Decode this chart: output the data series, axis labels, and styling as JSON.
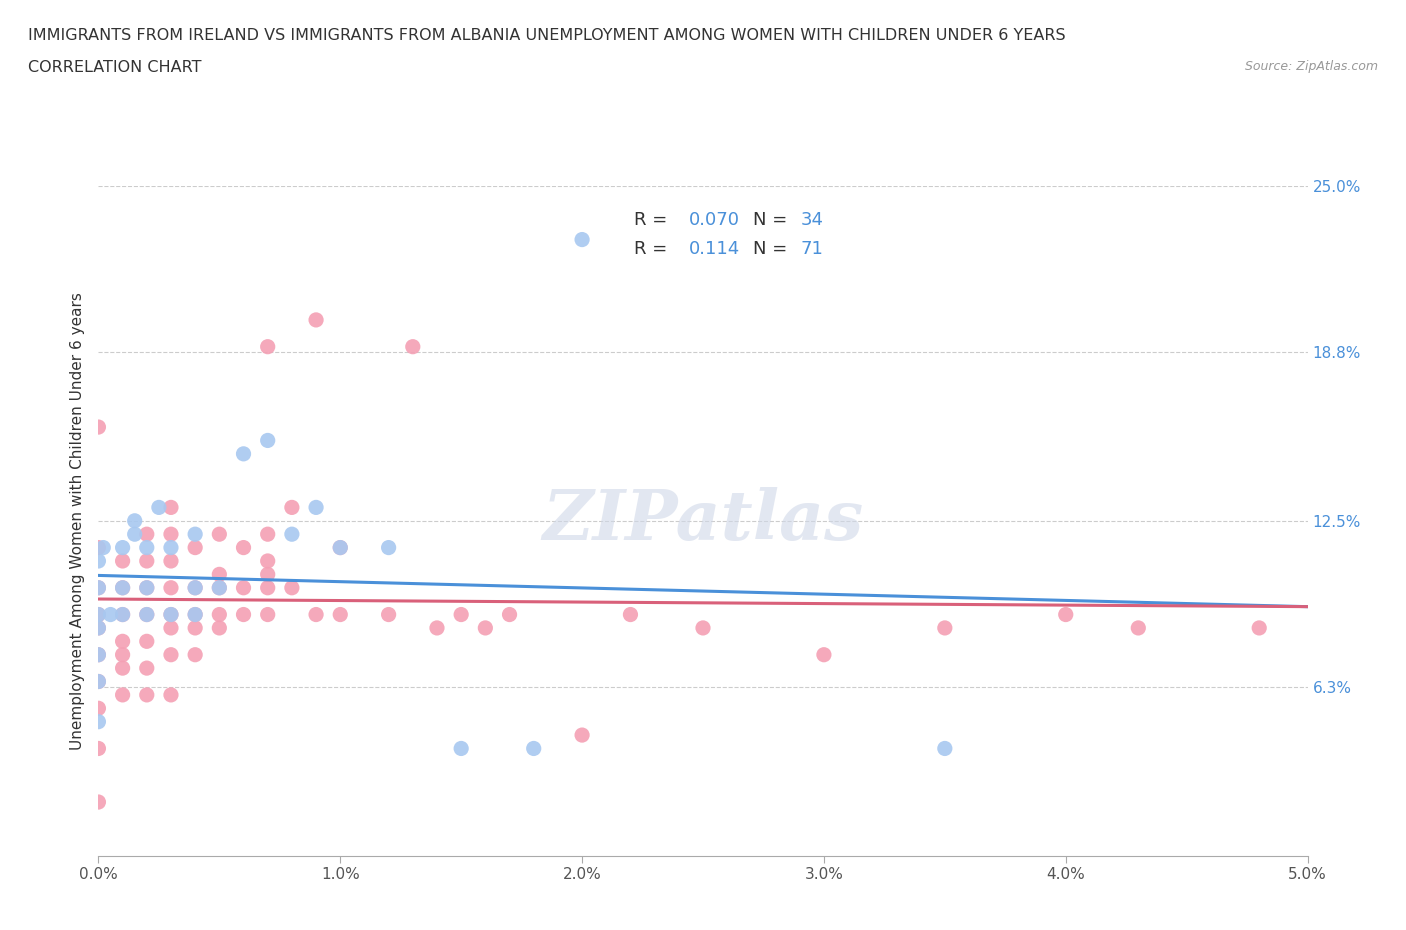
{
  "title_line1": "IMMIGRANTS FROM IRELAND VS IMMIGRANTS FROM ALBANIA UNEMPLOYMENT AMONG WOMEN WITH CHILDREN UNDER 6 YEARS",
  "title_line2": "CORRELATION CHART",
  "source_text": "Source: ZipAtlas.com",
  "ylabel": "Unemployment Among Women with Children Under 6 years",
  "xlim": [
    0.0,
    0.05
  ],
  "ylim": [
    0.0,
    0.25
  ],
  "xtick_labels": [
    "0.0%",
    "1.0%",
    "2.0%",
    "3.0%",
    "4.0%",
    "5.0%"
  ],
  "xtick_values": [
    0.0,
    0.01,
    0.02,
    0.03,
    0.04,
    0.05
  ],
  "ytick_values": [
    0.063,
    0.125,
    0.188,
    0.25
  ],
  "ytick_labels": [
    "6.3%",
    "12.5%",
    "18.8%",
    "25.0%"
  ],
  "ireland_color": "#a8c8f0",
  "albania_color": "#f4a0b4",
  "ireland_line_color": "#4a90d9",
  "albania_line_color": "#d9607a",
  "ireland_R": 0.07,
  "ireland_N": 34,
  "albania_R": 0.114,
  "albania_N": 71,
  "watermark_text": "ZIPatlas",
  "ireland_x": [
    0.0,
    0.0,
    0.0,
    0.0,
    0.0,
    0.0,
    0.0,
    0.0002,
    0.0005,
    0.001,
    0.001,
    0.001,
    0.0015,
    0.0015,
    0.002,
    0.002,
    0.002,
    0.0025,
    0.003,
    0.003,
    0.004,
    0.004,
    0.004,
    0.005,
    0.006,
    0.007,
    0.008,
    0.009,
    0.01,
    0.012,
    0.015,
    0.018,
    0.02,
    0.035
  ],
  "ireland_y": [
    0.05,
    0.065,
    0.075,
    0.085,
    0.09,
    0.1,
    0.11,
    0.115,
    0.09,
    0.09,
    0.1,
    0.115,
    0.12,
    0.125,
    0.09,
    0.1,
    0.115,
    0.13,
    0.09,
    0.115,
    0.09,
    0.1,
    0.12,
    0.1,
    0.15,
    0.155,
    0.12,
    0.13,
    0.115,
    0.115,
    0.04,
    0.04,
    0.23,
    0.04
  ],
  "albania_x": [
    0.0,
    0.0,
    0.0,
    0.0,
    0.0,
    0.0,
    0.0,
    0.0,
    0.0,
    0.0,
    0.001,
    0.001,
    0.001,
    0.001,
    0.001,
    0.001,
    0.001,
    0.002,
    0.002,
    0.002,
    0.002,
    0.002,
    0.002,
    0.002,
    0.003,
    0.003,
    0.003,
    0.003,
    0.003,
    0.003,
    0.003,
    0.003,
    0.004,
    0.004,
    0.004,
    0.004,
    0.004,
    0.005,
    0.005,
    0.005,
    0.005,
    0.005,
    0.006,
    0.006,
    0.006,
    0.007,
    0.007,
    0.007,
    0.007,
    0.007,
    0.007,
    0.008,
    0.008,
    0.009,
    0.009,
    0.01,
    0.01,
    0.012,
    0.013,
    0.014,
    0.015,
    0.016,
    0.017,
    0.02,
    0.022,
    0.025,
    0.03,
    0.035,
    0.04,
    0.043,
    0.048
  ],
  "albania_y": [
    0.02,
    0.04,
    0.055,
    0.065,
    0.075,
    0.085,
    0.09,
    0.1,
    0.115,
    0.16,
    0.06,
    0.07,
    0.075,
    0.08,
    0.09,
    0.1,
    0.11,
    0.06,
    0.07,
    0.08,
    0.09,
    0.1,
    0.11,
    0.12,
    0.06,
    0.075,
    0.085,
    0.09,
    0.1,
    0.11,
    0.12,
    0.13,
    0.075,
    0.085,
    0.09,
    0.1,
    0.115,
    0.085,
    0.09,
    0.1,
    0.105,
    0.12,
    0.09,
    0.1,
    0.115,
    0.09,
    0.1,
    0.105,
    0.11,
    0.12,
    0.19,
    0.1,
    0.13,
    0.09,
    0.2,
    0.09,
    0.115,
    0.09,
    0.19,
    0.085,
    0.09,
    0.085,
    0.09,
    0.045,
    0.09,
    0.085,
    0.075,
    0.085,
    0.09,
    0.085,
    0.085
  ]
}
